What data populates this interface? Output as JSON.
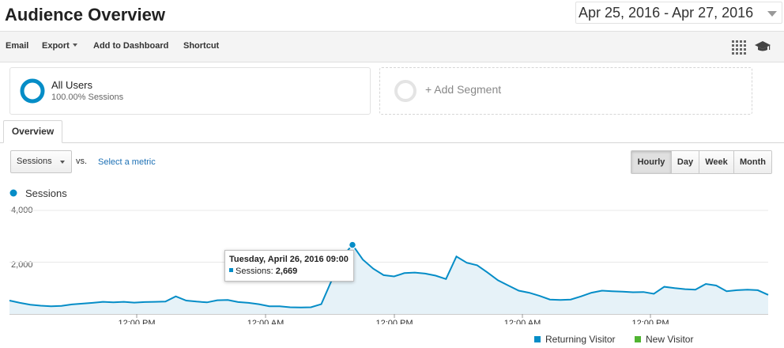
{
  "header": {
    "title": "Audience Overview",
    "date_range": "Apr 25, 2016 - Apr 27, 2016"
  },
  "toolbar": {
    "email": "Email",
    "export": "Export",
    "add_to_dashboard": "Add to Dashboard",
    "shortcut": "Shortcut",
    "icons": [
      "grid-icon",
      "graduation-cap-icon"
    ]
  },
  "segments": {
    "all_users": {
      "name": "All Users",
      "detail": "100.00% Sessions"
    },
    "add_segment": "+ Add Segment"
  },
  "tabs": [
    "Overview"
  ],
  "controls": {
    "metric": "Sessions",
    "vs": "vs.",
    "select_metric": "Select a metric",
    "granularity": [
      "Hourly",
      "Day",
      "Week",
      "Month"
    ],
    "active_granularity": "Hourly"
  },
  "colors": {
    "accent": "#058dc7",
    "area_fill": "#e6f2f8",
    "link": "#1c70b5",
    "returning": "#058dc7",
    "new": "#50b432"
  },
  "chart_data": {
    "type": "area",
    "legend": "Sessions",
    "y_ticks": [
      "4,000",
      "2,000"
    ],
    "ylim": [
      0,
      4000
    ],
    "x_tick_labels": [
      "12:00 PM",
      "12:00 AM",
      "12:00 PM",
      "12:00 AM",
      "12:00 PM"
    ],
    "grid": true,
    "values": [
      520,
      430,
      360,
      320,
      300,
      310,
      370,
      400,
      430,
      470,
      450,
      470,
      440,
      460,
      470,
      480,
      680,
      520,
      480,
      450,
      530,
      540,
      460,
      430,
      380,
      300,
      300,
      260,
      250,
      260,
      380,
      1300,
      2200,
      2669,
      2100,
      1750,
      1500,
      1450,
      1580,
      1600,
      1560,
      1480,
      1350,
      2220,
      1980,
      1880,
      1600,
      1300,
      1100,
      900,
      820,
      700,
      560,
      540,
      560,
      680,
      820,
      900,
      880,
      860,
      840,
      850,
      780,
      1050,
      1000,
      960,
      940,
      1160,
      1100,
      880,
      920,
      940,
      920,
      740
    ],
    "highlight_index": 33,
    "tooltip": {
      "title": "Tuesday, April 26, 2016 09:00",
      "series": "Sessions:",
      "value": "2,669"
    },
    "series": [
      {
        "name": "Returning Visitor"
      },
      {
        "name": "New Visitor"
      }
    ]
  }
}
